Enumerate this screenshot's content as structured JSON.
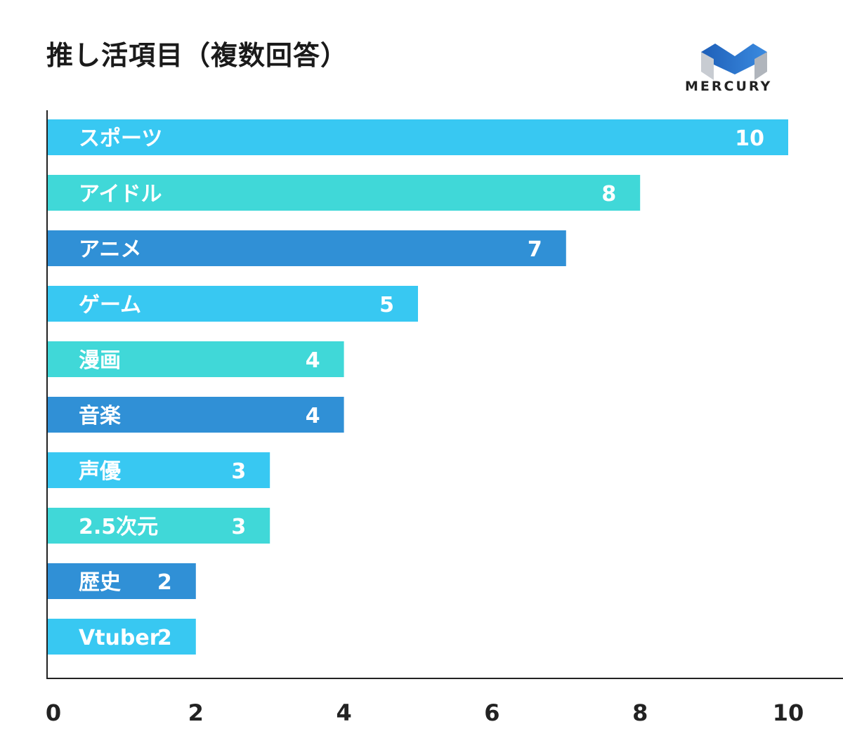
{
  "chart_data": {
    "type": "bar",
    "orientation": "horizontal",
    "title": "推し活項目（複数回答）",
    "categories": [
      "スポーツ",
      "アイドル",
      "アニメ",
      "ゲーム",
      "漫画",
      "音楽",
      "声優",
      "2.5次元",
      "歴史",
      "Vtuber"
    ],
    "values": [
      10,
      8,
      7,
      5,
      4,
      4,
      3,
      3,
      2,
      2
    ],
    "colors": [
      "#38c8f2",
      "#40d8d8",
      "#3090d6",
      "#38c8f2",
      "#40d8d8",
      "#3090d6",
      "#38c8f2",
      "#40d8d8",
      "#3090d6",
      "#38c8f2"
    ],
    "xlim": [
      0,
      10
    ],
    "xticks": [
      0,
      2,
      4,
      6,
      8,
      10
    ],
    "grid": false,
    "data_labels": true
  },
  "logo": {
    "text": "MERCURY"
  }
}
